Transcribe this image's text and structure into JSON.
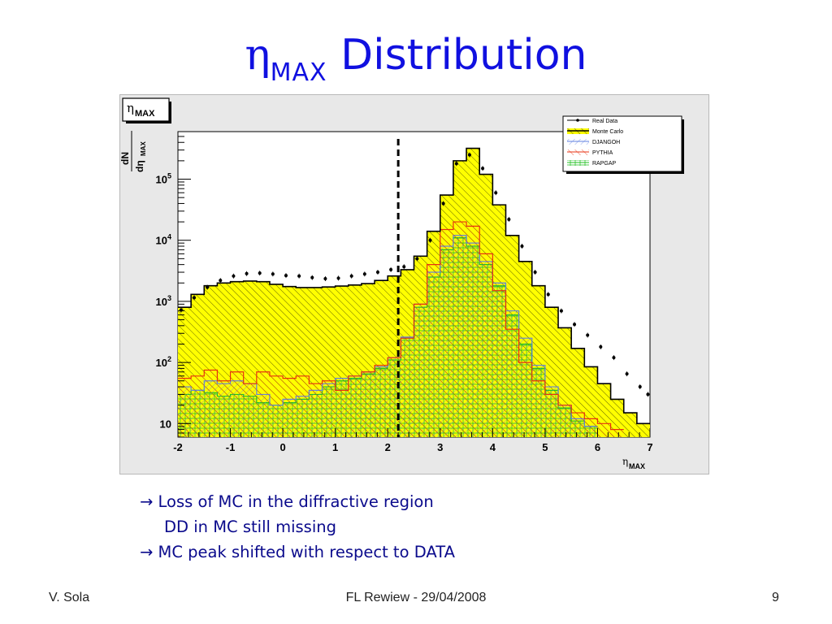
{
  "slide": {
    "title_symbol": "η",
    "title_subscript": "MAX",
    "title_text": "Distribution",
    "notes": [
      "→ Loss of MC in the diffractive region",
      "DD in MC still missing",
      "→ MC peak shifted with respect to DATA"
    ],
    "footer_left": "V. Sola",
    "footer_center": "FL Rewiew - 29/04/2008",
    "footer_right": "9"
  },
  "chart_data": {
    "type": "histogram",
    "title_box": {
      "symbol": "η",
      "subscript": "MAX"
    },
    "ylabel": {
      "numerator": "dN",
      "denominator": "dη",
      "subscript": "MAX"
    },
    "xlabel": {
      "symbol": "η",
      "subscript": "MAX"
    },
    "xlim": [
      -2,
      7
    ],
    "ylim": [
      6,
      600000
    ],
    "yscale": "log",
    "x_ticks": [
      "-2",
      "-1",
      "0",
      "1",
      "2",
      "3",
      "4",
      "5",
      "6",
      "7"
    ],
    "y_ticks": [
      {
        "value": 10,
        "label": "10"
      },
      {
        "value": 100,
        "label": "10",
        "exp": "2"
      },
      {
        "value": 1000,
        "label": "10",
        "exp": "3"
      },
      {
        "value": 10000,
        "label": "10",
        "exp": "4"
      },
      {
        "value": 100000,
        "label": "10",
        "exp": "5"
      }
    ],
    "cut_line": {
      "x": 2.2
    },
    "legend_placement": "top-right",
    "legend": [
      "Real Data",
      "Monte Carlo",
      "DJANGOH",
      "PYTHIA",
      "RAPGAP"
    ],
    "colors": {
      "data": "#000000",
      "monte_carlo_fill": "#ffff00",
      "djangoh": "#6080e0",
      "pythia": "#e83010",
      "rapgap": "#20c020",
      "plot_bg": "#ffffff",
      "frame_bg": "#e8e8e8"
    },
    "series": [
      {
        "name": "Real Data",
        "style": "points",
        "points": [
          [
            -2.0,
            720
          ],
          [
            -1.75,
            1150
          ],
          [
            -1.5,
            1700
          ],
          [
            -1.25,
            2200
          ],
          [
            -1.0,
            2600
          ],
          [
            -0.75,
            2850
          ],
          [
            -0.5,
            2900
          ],
          [
            -0.25,
            2800
          ],
          [
            0.0,
            2650
          ],
          [
            0.25,
            2600
          ],
          [
            0.5,
            2450
          ],
          [
            0.75,
            2350
          ],
          [
            1.0,
            2400
          ],
          [
            1.25,
            2600
          ],
          [
            1.5,
            2800
          ],
          [
            1.75,
            3000
          ],
          [
            2.0,
            3300
          ],
          [
            2.25,
            3700
          ],
          [
            2.5,
            5000
          ],
          [
            2.75,
            10000
          ],
          [
            3.0,
            40000
          ],
          [
            3.25,
            180000
          ],
          [
            3.5,
            250000
          ],
          [
            3.75,
            150000
          ],
          [
            4.0,
            60000
          ],
          [
            4.25,
            22000
          ],
          [
            4.5,
            8000
          ],
          [
            4.75,
            3000
          ],
          [
            5.0,
            1300
          ],
          [
            5.25,
            700
          ],
          [
            5.5,
            420
          ],
          [
            5.75,
            280
          ],
          [
            6.0,
            180
          ],
          [
            6.25,
            120
          ],
          [
            6.5,
            65
          ],
          [
            6.75,
            40
          ],
          [
            6.9,
            30
          ]
        ]
      },
      {
        "name": "Monte Carlo",
        "style": "step-filled",
        "points": [
          [
            -2.0,
            800
          ],
          [
            -1.75,
            1300
          ],
          [
            -1.5,
            1800
          ],
          [
            -1.25,
            2000
          ],
          [
            -1.0,
            2100
          ],
          [
            -0.75,
            2150
          ],
          [
            -0.5,
            2100
          ],
          [
            -0.25,
            1900
          ],
          [
            0.0,
            1750
          ],
          [
            0.25,
            1680
          ],
          [
            0.5,
            1680
          ],
          [
            0.75,
            1720
          ],
          [
            1.0,
            1780
          ],
          [
            1.25,
            1850
          ],
          [
            1.5,
            1950
          ],
          [
            1.75,
            2200
          ],
          [
            2.0,
            2600
          ],
          [
            2.25,
            3300
          ],
          [
            2.5,
            5500
          ],
          [
            2.75,
            14000
          ],
          [
            3.0,
            55000
          ],
          [
            3.25,
            200000
          ],
          [
            3.5,
            320000
          ],
          [
            3.75,
            120000
          ],
          [
            4.0,
            38000
          ],
          [
            4.25,
            12000
          ],
          [
            4.5,
            4500
          ],
          [
            4.75,
            1800
          ],
          [
            5.0,
            800
          ],
          [
            5.25,
            370
          ],
          [
            5.5,
            170
          ],
          [
            5.75,
            85
          ],
          [
            6.0,
            45
          ],
          [
            6.25,
            25
          ],
          [
            6.5,
            15
          ],
          [
            6.75,
            10
          ],
          [
            7.0,
            10
          ]
        ]
      },
      {
        "name": "DJANGOH",
        "style": "step",
        "points": [
          [
            -2.0,
            40
          ],
          [
            -1.75,
            35
          ],
          [
            -1.5,
            50
          ],
          [
            -1.25,
            45
          ],
          [
            -1.0,
            50
          ],
          [
            -0.75,
            45
          ],
          [
            -0.5,
            30
          ],
          [
            -0.25,
            20
          ],
          [
            0.0,
            25
          ],
          [
            0.25,
            28
          ],
          [
            0.5,
            35
          ],
          [
            0.75,
            45
          ],
          [
            1.0,
            55
          ],
          [
            1.25,
            60
          ],
          [
            1.5,
            70
          ],
          [
            1.75,
            85
          ],
          [
            2.0,
            120
          ],
          [
            2.25,
            260
          ],
          [
            2.5,
            900
          ],
          [
            2.75,
            3000
          ],
          [
            3.0,
            8000
          ],
          [
            3.25,
            12000
          ],
          [
            3.5,
            9000
          ],
          [
            3.75,
            4500
          ],
          [
            4.0,
            2000
          ],
          [
            4.25,
            700
          ],
          [
            4.5,
            250
          ],
          [
            4.75,
            90
          ],
          [
            5.0,
            40
          ],
          [
            5.25,
            20
          ],
          [
            5.5,
            12
          ],
          [
            5.75,
            9
          ]
        ]
      },
      {
        "name": "PYTHIA",
        "style": "step",
        "points": [
          [
            -2.0,
            55
          ],
          [
            -1.75,
            60
          ],
          [
            -1.5,
            75
          ],
          [
            -1.25,
            50
          ],
          [
            -1.0,
            70
          ],
          [
            -0.75,
            45
          ],
          [
            -0.5,
            70
          ],
          [
            -0.25,
            60
          ],
          [
            0.0,
            55
          ],
          [
            0.25,
            60
          ],
          [
            0.5,
            45
          ],
          [
            0.75,
            50
          ],
          [
            1.0,
            35
          ],
          [
            1.25,
            60
          ],
          [
            1.5,
            70
          ],
          [
            1.75,
            90
          ],
          [
            2.0,
            120
          ],
          [
            2.25,
            250
          ],
          [
            2.5,
            900
          ],
          [
            2.75,
            4000
          ],
          [
            3.0,
            15000
          ],
          [
            3.25,
            20000
          ],
          [
            3.5,
            17000
          ],
          [
            3.75,
            6000
          ],
          [
            4.0,
            1500
          ],
          [
            4.25,
            350
          ],
          [
            4.5,
            100
          ],
          [
            4.75,
            50
          ],
          [
            5.0,
            30
          ],
          [
            5.25,
            20
          ],
          [
            5.5,
            15
          ],
          [
            5.75,
            12
          ],
          [
            6.0,
            10
          ],
          [
            6.25,
            8
          ]
        ]
      },
      {
        "name": "RAPGAP",
        "style": "step",
        "points": [
          [
            -2.0,
            30
          ],
          [
            -1.75,
            35
          ],
          [
            -1.5,
            32
          ],
          [
            -1.25,
            28
          ],
          [
            -1.0,
            30
          ],
          [
            -0.75,
            28
          ],
          [
            -0.5,
            22
          ],
          [
            -0.25,
            20
          ],
          [
            0.0,
            22
          ],
          [
            0.25,
            25
          ],
          [
            0.5,
            30
          ],
          [
            0.75,
            40
          ],
          [
            1.0,
            50
          ],
          [
            1.25,
            55
          ],
          [
            1.5,
            65
          ],
          [
            1.75,
            80
          ],
          [
            2.0,
            110
          ],
          [
            2.25,
            250
          ],
          [
            2.5,
            800
          ],
          [
            2.75,
            2500
          ],
          [
            3.0,
            7000
          ],
          [
            3.25,
            11000
          ],
          [
            3.5,
            8000
          ],
          [
            3.75,
            4000
          ],
          [
            4.0,
            1800
          ],
          [
            4.25,
            600
          ],
          [
            4.5,
            200
          ],
          [
            4.75,
            80
          ],
          [
            5.0,
            35
          ],
          [
            5.25,
            18
          ],
          [
            5.5,
            11
          ],
          [
            5.75,
            9
          ]
        ]
      }
    ]
  }
}
